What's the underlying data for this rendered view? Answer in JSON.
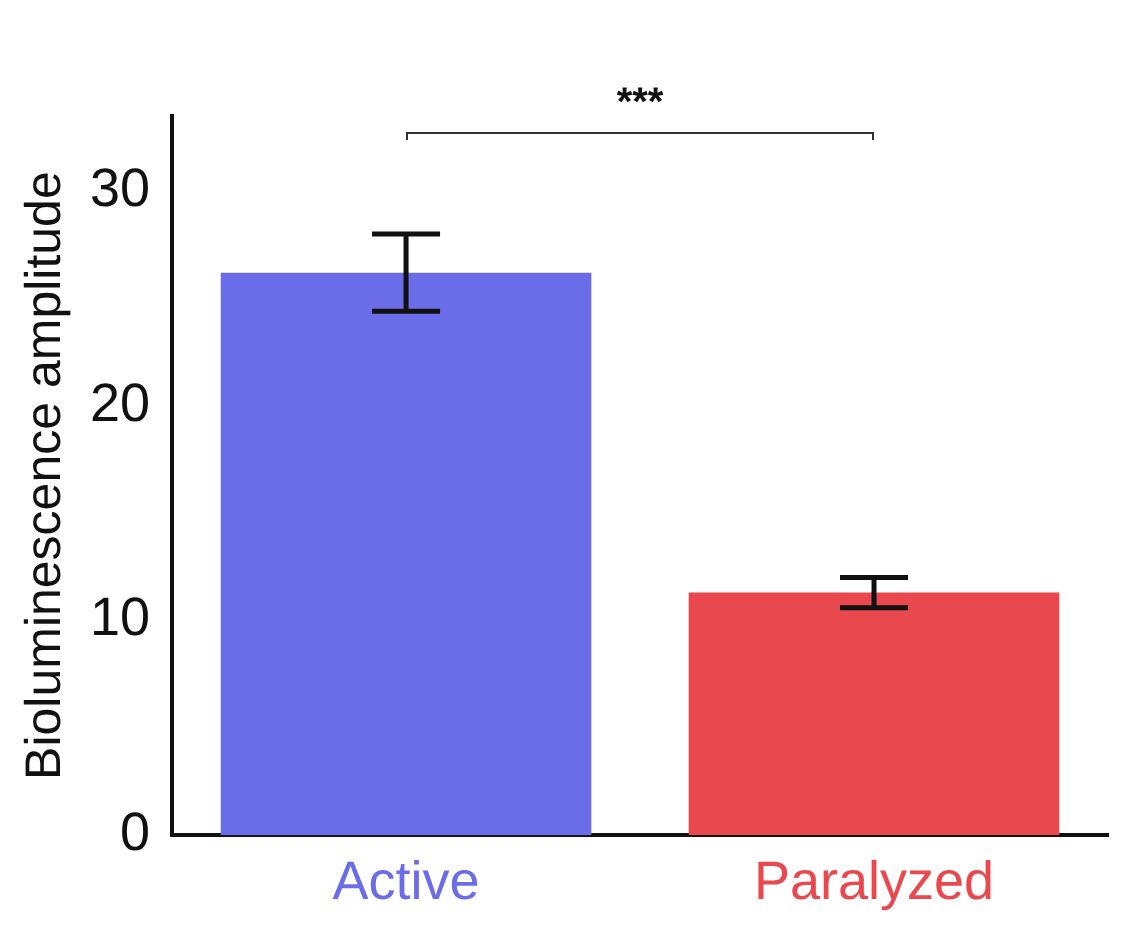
{
  "chart_data": {
    "type": "bar",
    "ylabel": "Bioluminescence amplitude",
    "categories": [
      "Active",
      "Paralyzed"
    ],
    "values": [
      26.2,
      11.3
    ],
    "colors": [
      "#6b6de8",
      "#e8484e"
    ],
    "errors": [
      1.8,
      0.7
    ],
    "ylim": [
      0,
      33.5
    ],
    "yticks": [
      0,
      10,
      20,
      30
    ],
    "grid": false,
    "legend": false,
    "annotations": [
      "***"
    ]
  }
}
